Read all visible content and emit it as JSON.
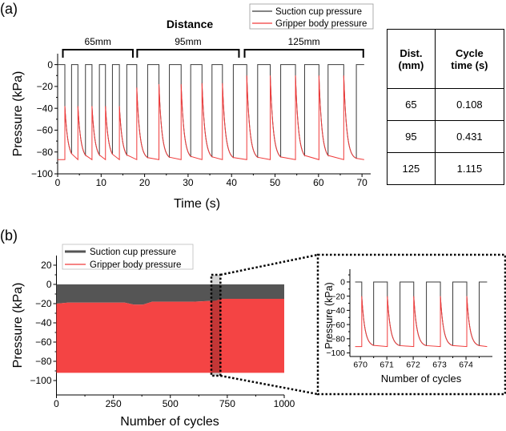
{
  "panel_labels": {
    "a": "(a)",
    "b": "(b)"
  },
  "table": {
    "headers": [
      "Dist.\n(mm)",
      "Cycle\ntime (s)"
    ],
    "rows": [
      [
        "65",
        "0.108"
      ],
      [
        "95",
        "0.431"
      ],
      [
        "125",
        "1.115"
      ]
    ]
  },
  "colors": {
    "suction": "#3a3a3a",
    "gripper": "#f03a3a",
    "gripper_fill": "#f44444",
    "suction_fill": "#555555",
    "highlight": "#cfcfcf"
  },
  "chart_data": [
    {
      "id": "a",
      "type": "line",
      "title": "Distance",
      "xlabel": "Time (s)",
      "ylabel": "Pressure (kPa)",
      "xlim": [
        0,
        72
      ],
      "ylim": [
        -100,
        10
      ],
      "xticks": [
        0,
        10,
        20,
        30,
        40,
        50,
        60,
        70
      ],
      "yticks": [
        0,
        -20,
        -40,
        -60,
        -80,
        -100
      ],
      "legend": {
        "placement": "top-right",
        "entries": [
          "Suction cup pressure",
          "Gripper body pressure"
        ]
      },
      "baseline_kPa": -87,
      "groups": [
        {
          "label": "65mm",
          "range": [
            1.2,
            17.3
          ],
          "release_times": [
            1.66,
            4.66,
            7.9,
            11.0,
            14.2
          ],
          "restore_times": [
            3.2,
            6.4,
            9.6,
            12.6,
            15.9
          ],
          "gripper_peaks": [
            -38,
            -38,
            -38,
            -38,
            -38
          ]
        },
        {
          "label": "95mm",
          "range": [
            18.3,
            41.7
          ],
          "release_times": [
            18.2,
            23.3,
            28.4,
            33.2,
            37.9
          ],
          "restore_times": [
            20.7,
            25.7,
            30.6,
            35.5,
            40.4
          ],
          "gripper_peaks": [
            -21,
            -18,
            -18,
            -17,
            -17
          ]
        },
        {
          "label": "125mm",
          "range": [
            43.0,
            70.3
          ],
          "release_times": [
            43.5,
            48.9,
            54.7,
            60.1,
            65.8
          ],
          "restore_times": [
            46.0,
            51.3,
            56.8,
            62.2,
            68.7
          ],
          "gripper_peaks": [
            -10,
            -10,
            -10,
            -10,
            -10
          ]
        }
      ],
      "end_time": 70.5
    },
    {
      "id": "b",
      "type": "area",
      "xlabel": "Number of cycles",
      "ylabel": "Pressure (kPa)",
      "xlim": [
        0,
        1000
      ],
      "ylim": [
        -115,
        30
      ],
      "xticks": [
        0,
        250,
        500,
        750,
        1000
      ],
      "yticks": [
        20,
        0,
        -20,
        -40,
        -60,
        -80,
        -100
      ],
      "legend": {
        "placement": "top-left",
        "entries": [
          "Suction cup pressure",
          "Gripper body pressure"
        ]
      },
      "suction_max_kPa": 0,
      "gripper_min_kPa": -92,
      "gripper_peak_envelope": [
        [
          0,
          -20
        ],
        [
          50,
          -19
        ],
        [
          300,
          -19
        ],
        [
          340,
          -21
        ],
        [
          380,
          -21
        ],
        [
          420,
          -18
        ],
        [
          600,
          -18
        ],
        [
          700,
          -17
        ],
        [
          720,
          -15
        ],
        [
          1000,
          -15
        ]
      ],
      "highlight_range": [
        680,
        720
      ]
    },
    {
      "id": "b-inset",
      "type": "line",
      "xlabel": "Number of cycles",
      "ylabel": "Pressure (kPa)",
      "xlim": [
        669.6,
        675.0
      ],
      "ylim": [
        -105,
        18
      ],
      "xticks": [
        670,
        671,
        672,
        673,
        674
      ],
      "yticks": [
        0,
        -20,
        -40,
        -60,
        -80,
        -100
      ],
      "baseline_kPa": -91,
      "release_times": [
        670.05,
        671.02,
        672.02,
        673.03,
        674.03
      ],
      "restore_times": [
        670.5,
        671.5,
        672.5,
        673.5,
        674.5
      ],
      "gripper_peaks": [
        -20,
        -20,
        -20,
        -20,
        -20
      ]
    }
  ]
}
